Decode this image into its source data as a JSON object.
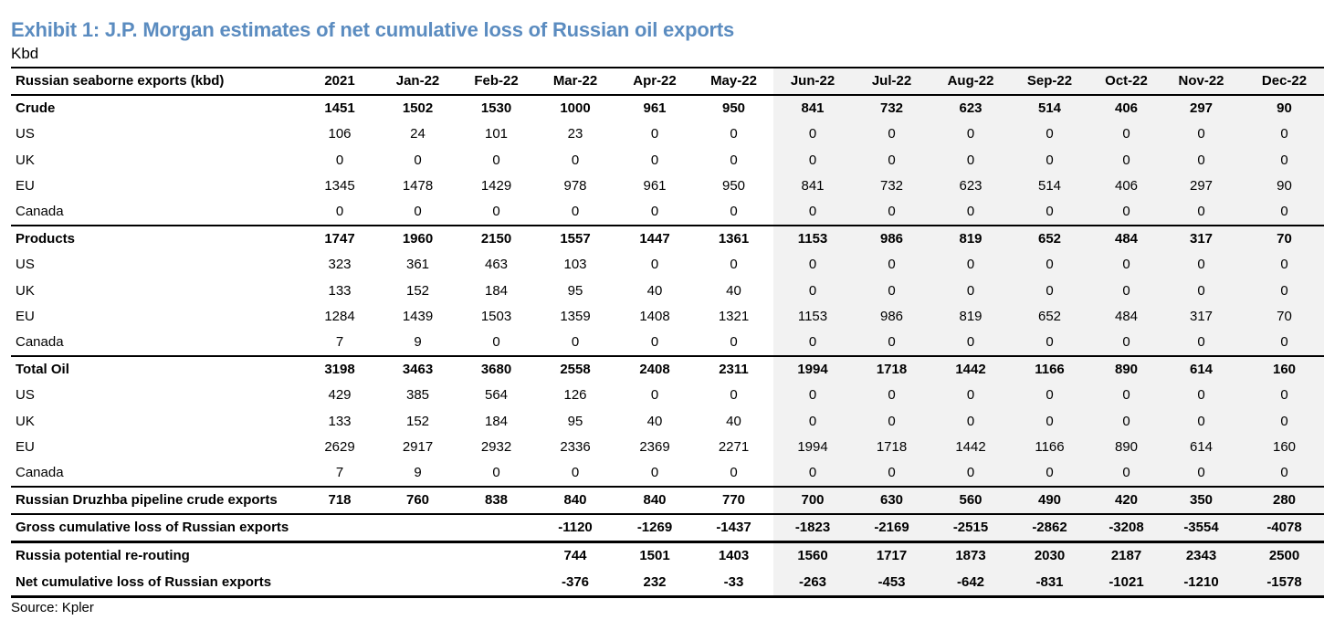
{
  "title": "Exhibit 1: J.P. Morgan estimates of net cumulative loss of Russian oil exports",
  "subtitle": "Kbd",
  "source": "Source: Kpler",
  "colors": {
    "title": "#5b8cc0",
    "shade": "#f2f2f2"
  },
  "table": {
    "header_label": "Russian seaborne exports (kbd)",
    "columns": [
      "2021",
      "Jan-22",
      "Feb-22",
      "Mar-22",
      "Apr-22",
      "May-22",
      "Jun-22",
      "Jul-22",
      "Aug-22",
      "Sep-22",
      "Oct-22",
      "Nov-22",
      "Dec-22"
    ],
    "rows": [
      {
        "label": "Crude",
        "bold": true,
        "values": [
          "1451",
          "1502",
          "1530",
          "1000",
          "961",
          "950",
          "841",
          "732",
          "623",
          "514",
          "406",
          "297",
          "90"
        ]
      },
      {
        "label": "US",
        "values": [
          "106",
          "24",
          "101",
          "23",
          "0",
          "0",
          "0",
          "0",
          "0",
          "0",
          "0",
          "0",
          "0"
        ]
      },
      {
        "label": "UK",
        "values": [
          "0",
          "0",
          "0",
          "0",
          "0",
          "0",
          "0",
          "0",
          "0",
          "0",
          "0",
          "0",
          "0"
        ]
      },
      {
        "label": "EU",
        "values": [
          "1345",
          "1478",
          "1429",
          "978",
          "961",
          "950",
          "841",
          "732",
          "623",
          "514",
          "406",
          "297",
          "90"
        ]
      },
      {
        "label": "Canada",
        "values": [
          "0",
          "0",
          "0",
          "0",
          "0",
          "0",
          "0",
          "0",
          "0",
          "0",
          "0",
          "0",
          "0"
        ]
      },
      {
        "label": "Products",
        "bold": true,
        "sep": true,
        "values": [
          "1747",
          "1960",
          "2150",
          "1557",
          "1447",
          "1361",
          "1153",
          "986",
          "819",
          "652",
          "484",
          "317",
          "70"
        ]
      },
      {
        "label": "US",
        "values": [
          "323",
          "361",
          "463",
          "103",
          "0",
          "0",
          "0",
          "0",
          "0",
          "0",
          "0",
          "0",
          "0"
        ]
      },
      {
        "label": "UK",
        "values": [
          "133",
          "152",
          "184",
          "95",
          "40",
          "40",
          "0",
          "0",
          "0",
          "0",
          "0",
          "0",
          "0"
        ]
      },
      {
        "label": "EU",
        "values": [
          "1284",
          "1439",
          "1503",
          "1359",
          "1408",
          "1321",
          "1153",
          "986",
          "819",
          "652",
          "484",
          "317",
          "70"
        ]
      },
      {
        "label": "Canada",
        "values": [
          "7",
          "9",
          "0",
          "0",
          "0",
          "0",
          "0",
          "0",
          "0",
          "0",
          "0",
          "0",
          "0"
        ]
      },
      {
        "label": "Total Oil",
        "bold": true,
        "sep": true,
        "values": [
          "3198",
          "3463",
          "3680",
          "2558",
          "2408",
          "2311",
          "1994",
          "1718",
          "1442",
          "1166",
          "890",
          "614",
          "160"
        ]
      },
      {
        "label": "US",
        "values": [
          "429",
          "385",
          "564",
          "126",
          "0",
          "0",
          "0",
          "0",
          "0",
          "0",
          "0",
          "0",
          "0"
        ]
      },
      {
        "label": "UK",
        "values": [
          "133",
          "152",
          "184",
          "95",
          "40",
          "40",
          "0",
          "0",
          "0",
          "0",
          "0",
          "0",
          "0"
        ]
      },
      {
        "label": "EU",
        "values": [
          "2629",
          "2917",
          "2932",
          "2336",
          "2369",
          "2271",
          "1994",
          "1718",
          "1442",
          "1166",
          "890",
          "614",
          "160"
        ]
      },
      {
        "label": "Canada",
        "values": [
          "7",
          "9",
          "0",
          "0",
          "0",
          "0",
          "0",
          "0",
          "0",
          "0",
          "0",
          "0",
          "0"
        ]
      },
      {
        "label": "Russian Druzhba pipeline crude exports",
        "bold": true,
        "sep": true,
        "values": [
          "718",
          "760",
          "838",
          "840",
          "840",
          "770",
          "700",
          "630",
          "560",
          "490",
          "420",
          "350",
          "280"
        ]
      },
      {
        "label": "Gross cumulative loss of Russian exports",
        "bold": true,
        "sep": true,
        "values": [
          "",
          "",
          "",
          "-1120",
          "-1269",
          "-1437",
          "-1823",
          "-2169",
          "-2515",
          "-2862",
          "-3208",
          "-3554",
          "-4078"
        ]
      },
      {
        "label": "Russia potential re-routing",
        "bold": true,
        "thick": true,
        "values": [
          "",
          "",
          "",
          "744",
          "1501",
          "1403",
          "1560",
          "1717",
          "1873",
          "2030",
          "2187",
          "2343",
          "2500"
        ]
      },
      {
        "label": "Net cumulative loss of Russian exports",
        "bold": true,
        "last": true,
        "values": [
          "",
          "",
          "",
          "-376",
          "232",
          "-33",
          "-263",
          "-453",
          "-642",
          "-831",
          "-1021",
          "-1210",
          "-1578"
        ]
      }
    ]
  }
}
